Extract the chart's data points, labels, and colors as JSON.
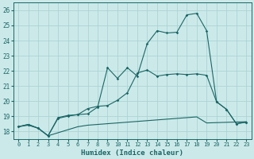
{
  "xlabel": "Humidex (Indice chaleur)",
  "background_color": "#cce9e9",
  "grid_color": "#aad4d4",
  "line_color": "#1a6666",
  "xlim": [
    -0.5,
    23.5
  ],
  "ylim": [
    17.5,
    26.5
  ],
  "yticks": [
    18,
    19,
    20,
    21,
    22,
    23,
    24,
    25,
    26
  ],
  "xticks": [
    0,
    1,
    2,
    3,
    4,
    5,
    6,
    7,
    8,
    9,
    10,
    11,
    12,
    13,
    14,
    15,
    16,
    17,
    18,
    19,
    20,
    21,
    22,
    23
  ],
  "line1_x": [
    0,
    1,
    2,
    3,
    4,
    5,
    6,
    7,
    8,
    9,
    10,
    11,
    12,
    13,
    14,
    15,
    16,
    17,
    18,
    19,
    20,
    21,
    22,
    23
  ],
  "line1_y": [
    18.3,
    18.45,
    18.2,
    17.7,
    18.9,
    19.05,
    19.1,
    19.15,
    19.6,
    22.2,
    21.5,
    22.2,
    21.65,
    23.8,
    24.65,
    24.5,
    24.55,
    25.7,
    25.8,
    24.65,
    19.95,
    19.45,
    18.5,
    18.6
  ],
  "line1_markers": true,
  "line2_x": [
    0,
    1,
    2,
    3,
    4,
    5,
    6,
    7,
    8,
    9,
    10,
    11,
    12,
    13,
    14,
    15,
    16,
    17,
    18,
    19,
    20,
    21,
    22,
    23
  ],
  "line2_y": [
    18.3,
    18.45,
    18.2,
    17.7,
    18.85,
    19.0,
    19.1,
    19.5,
    19.65,
    19.7,
    20.05,
    20.55,
    21.85,
    22.05,
    21.65,
    21.75,
    21.8,
    21.75,
    21.8,
    21.7,
    19.95,
    19.45,
    18.5,
    18.6
  ],
  "line2_markers": true,
  "line3_x": [
    0,
    1,
    2,
    3,
    4,
    5,
    6,
    7,
    8,
    9,
    10,
    11,
    12,
    13,
    14,
    15,
    16,
    17,
    18,
    19,
    20,
    21,
    22,
    23
  ],
  "line3_y": [
    18.3,
    18.4,
    18.2,
    17.7,
    17.9,
    18.1,
    18.3,
    18.4,
    18.45,
    18.5,
    18.55,
    18.6,
    18.65,
    18.7,
    18.75,
    18.8,
    18.85,
    18.9,
    18.95,
    18.55,
    18.57,
    18.59,
    18.61,
    18.63
  ],
  "line3_markers": false
}
